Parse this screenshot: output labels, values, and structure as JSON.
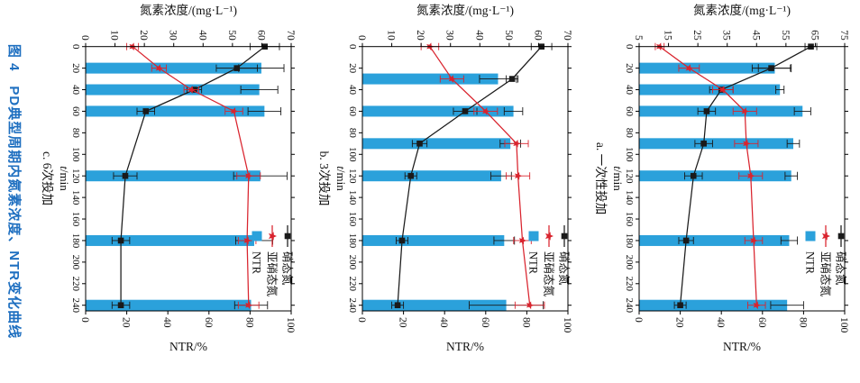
{
  "figure": {
    "caption": "图 4　PD典型周期内氮素浓度、NTR变化曲线",
    "caption_color": "#1e6fc0",
    "axes_titles": {
      "conc": "氮素浓度/(mg·L⁻¹)",
      "time": "t/min",
      "ntr": "NTR/%"
    },
    "legend": {
      "items": [
        {
          "series": "nitrate",
          "label": "硝态氮",
          "color": "#1a1a1a",
          "marker": "square-line"
        },
        {
          "series": "nitrite",
          "label": "亚硝态氮",
          "color": "#d9242e",
          "marker": "star-line"
        },
        {
          "series": "ntr",
          "label": "NTR",
          "color": "#2ba1db",
          "marker": "square"
        }
      ]
    }
  },
  "chart_data": [
    {
      "panel": "a",
      "type": "bar+line",
      "label": "a. 一次性投加",
      "conc_axis": {
        "min": 5,
        "max": 75,
        "step": 10
      },
      "time_axis": {
        "min": 0,
        "max": 240,
        "step": 20
      },
      "ntr_axis": {
        "min": 0,
        "max": 100,
        "step": 20
      },
      "nitrate": {
        "t": [
          0,
          20,
          40,
          60,
          90,
          120,
          180,
          240
        ],
        "values": [
          63.5,
          50,
          33,
          28,
          27,
          23.5,
          21,
          19
        ],
        "errors": [
          2,
          6.5,
          4,
          3,
          3,
          3,
          2.5,
          2
        ]
      },
      "nitrite": {
        "t": [
          0,
          20,
          40,
          60,
          90,
          120,
          180,
          240
        ],
        "values": [
          12,
          22,
          33.5,
          41,
          41.5,
          43,
          44,
          45
        ],
        "errors": [
          1.5,
          3.5,
          3.5,
          4,
          4,
          4,
          3,
          3
        ]
      },
      "ntr_bars": {
        "t": [
          20,
          40,
          60,
          90,
          120,
          180,
          240
        ],
        "values": [
          66,
          68.5,
          79.5,
          75,
          74,
          73,
          72
        ],
        "errors": [
          8,
          2,
          4,
          3,
          3,
          4,
          8
        ]
      }
    },
    {
      "panel": "b",
      "type": "bar+line",
      "label": "b. 3次投加",
      "conc_axis": {
        "min": 0,
        "max": 70,
        "step": 10
      },
      "time_axis": {
        "min": 0,
        "max": 240,
        "step": 20
      },
      "ntr_axis": {
        "min": 0,
        "max": 100,
        "step": 20
      },
      "nitrate": {
        "t": [
          0,
          30,
          60,
          90,
          120,
          180,
          240
        ],
        "values": [
          61,
          51,
          35,
          19.5,
          16.5,
          13.5,
          12
        ],
        "errors": [
          3.5,
          2,
          4,
          2.5,
          2,
          2,
          2
        ]
      },
      "nitrite": {
        "t": [
          0,
          30,
          60,
          90,
          120,
          180,
          240
        ],
        "values": [
          23,
          30.5,
          42,
          52.5,
          53,
          54.5,
          57
        ],
        "errors": [
          3,
          4,
          4,
          4,
          4,
          3,
          5
        ]
      },
      "ntr_bars": {
        "t": [
          30,
          60,
          90,
          120,
          180,
          240
        ],
        "values": [
          66,
          73.5,
          72,
          67.5,
          69,
          70
        ],
        "errors": [
          9,
          4.5,
          5,
          5,
          5,
          18
        ]
      }
    },
    {
      "panel": "c",
      "type": "bar+line",
      "label": "c. 6次投加",
      "conc_axis": {
        "min": 0,
        "max": 70,
        "step": 10
      },
      "time_axis": {
        "min": 0,
        "max": 240,
        "step": 20
      },
      "ntr_axis": {
        "min": 0,
        "max": 100,
        "step": 20
      },
      "nitrate": {
        "t": [
          0,
          20,
          40,
          60,
          120,
          180,
          240
        ],
        "values": [
          61,
          51.5,
          37,
          20.5,
          13.5,
          12,
          12
        ],
        "errors": [
          5,
          7,
          2.5,
          3,
          4,
          3,
          3
        ]
      },
      "nitrite": {
        "t": [
          0,
          20,
          40,
          60,
          120,
          180,
          240
        ],
        "values": [
          16,
          25,
          36,
          50.5,
          55.5,
          55,
          55.5
        ],
        "errors": [
          2,
          2.5,
          2.5,
          3,
          4,
          3,
          3.5
        ]
      },
      "ntr_bars": {
        "t": [
          20,
          40,
          60,
          120,
          180,
          240
        ],
        "values": [
          85.5,
          84.5,
          87,
          85,
          82,
          80.5
        ],
        "errors": [
          11,
          9,
          8,
          13,
          9,
          8
        ]
      }
    }
  ]
}
